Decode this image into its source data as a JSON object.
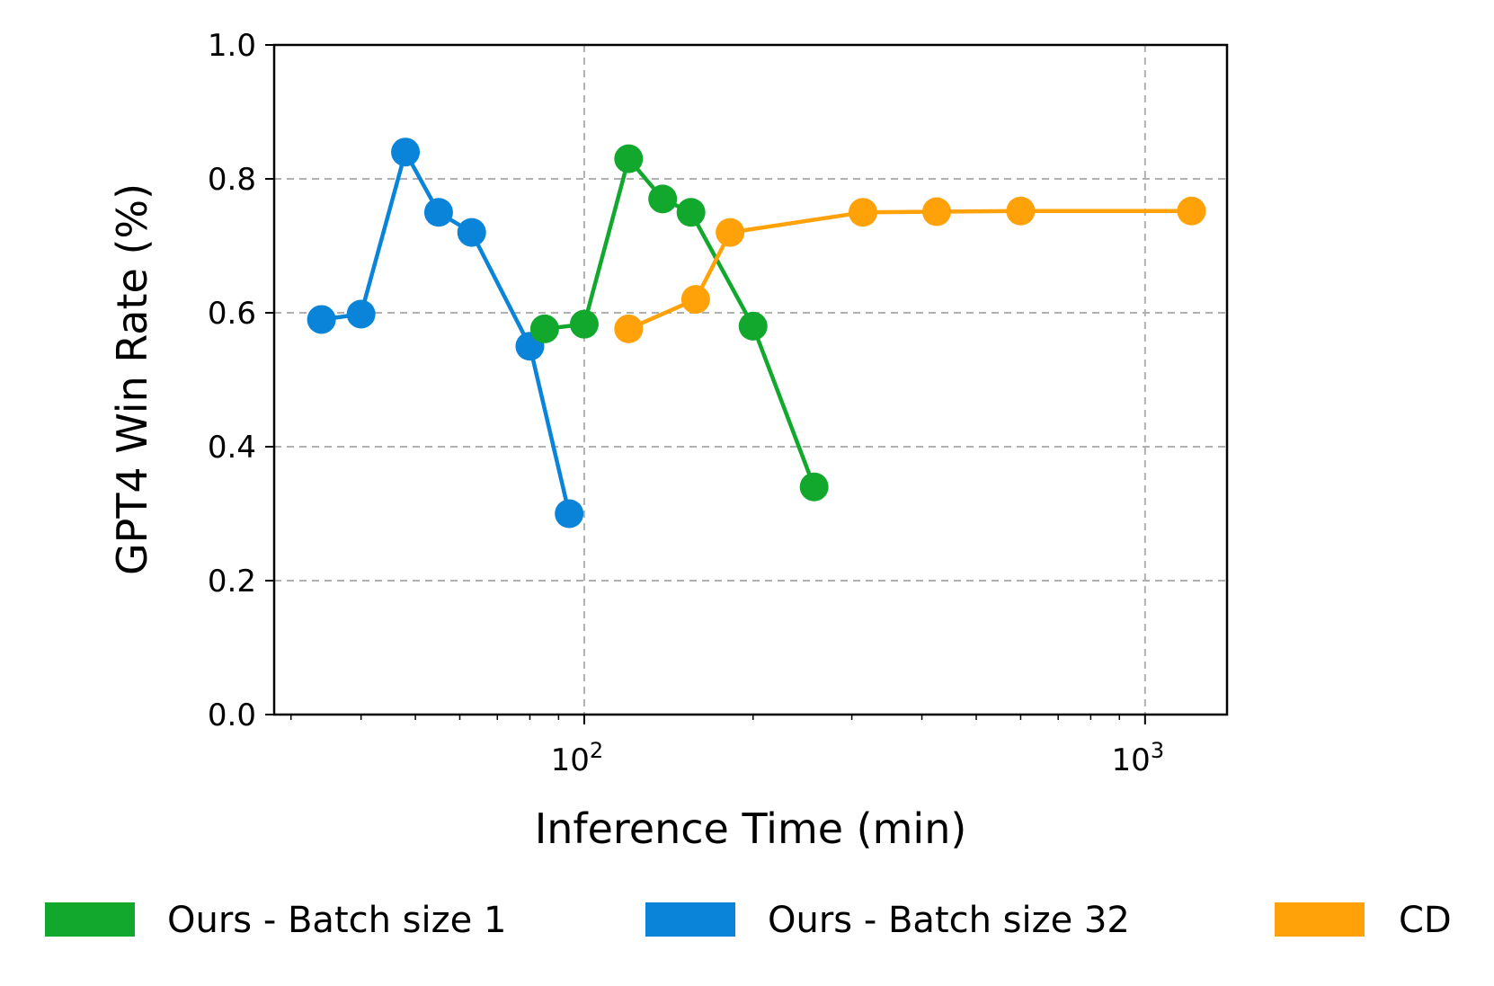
{
  "chart_data": {
    "type": "line",
    "xlabel": "Inference Time (min)",
    "ylabel": "GPT4 Win Rate (%)",
    "xscale": "log",
    "xlim": [
      28,
      1400
    ],
    "ylim": [
      0.0,
      1.0
    ],
    "grid": true,
    "legend_position": "bottom",
    "yticks": [
      {
        "value": 0.0,
        "label": "0.0"
      },
      {
        "value": 0.2,
        "label": "0.2"
      },
      {
        "value": 0.4,
        "label": "0.4"
      },
      {
        "value": 0.6,
        "label": "0.6"
      },
      {
        "value": 0.8,
        "label": "0.8"
      },
      {
        "value": 1.0,
        "label": "1.0"
      }
    ],
    "xticks": [
      {
        "value": 100,
        "base": "10",
        "exp": "2"
      },
      {
        "value": 1000,
        "base": "10",
        "exp": "3"
      }
    ],
    "series": [
      {
        "name": "Ours - Batch size 32",
        "color": "#0a84d8",
        "x": [
          34,
          40,
          48,
          55,
          63,
          80,
          94
        ],
        "y": [
          0.59,
          0.598,
          0.84,
          0.75,
          0.72,
          0.55,
          0.3
        ]
      },
      {
        "name": "Ours - Batch size 1",
        "color": "#12a82d",
        "x": [
          85,
          100,
          120,
          138,
          155,
          200,
          257
        ],
        "y": [
          0.576,
          0.583,
          0.83,
          0.77,
          0.75,
          0.58,
          0.34
        ]
      },
      {
        "name": "CD",
        "color": "#ffa20a",
        "x": [
          120,
          158,
          182,
          314,
          425,
          600,
          1210
        ],
        "y": [
          0.576,
          0.62,
          0.72,
          0.75,
          0.751,
          0.752,
          0.752
        ]
      }
    ],
    "legend": [
      {
        "name": "Ours - Batch size 1",
        "color": "#12a82d"
      },
      {
        "name": "Ours - Batch size 32",
        "color": "#0a84d8"
      },
      {
        "name": "CD",
        "color": "#ffa20a"
      }
    ]
  }
}
